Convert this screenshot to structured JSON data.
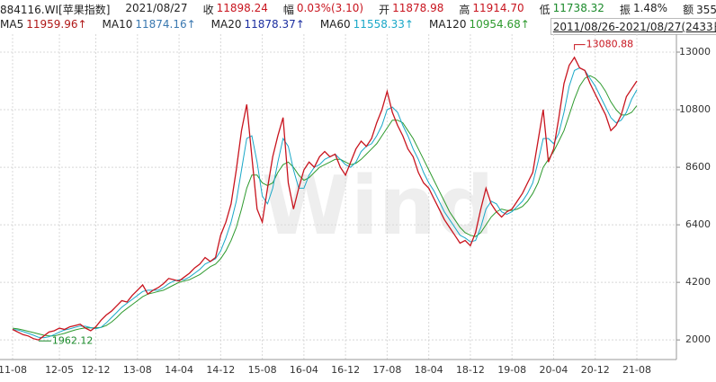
{
  "chart_data": {
    "type": "line",
    "title": "884116.WI[苹果指数]",
    "date": "2021/08/27",
    "quote": [
      {
        "label": "收",
        "value": "11898.24",
        "color": "#c8141e"
      },
      {
        "label": "幅",
        "value": "0.03%(3.10)",
        "color": "#c8141e"
      },
      {
        "label": "开",
        "value": "11878.98",
        "color": "#c8141e"
      },
      {
        "label": "高",
        "value": "11914.70",
        "color": "#c8141e"
      },
      {
        "label": "低",
        "value": "11738.32",
        "color": "#1a8a2a"
      },
      {
        "label": "振",
        "value": "1.48%",
        "color": "#222222"
      },
      {
        "label": "额",
        "value": "355.79亿",
        "color": "#222222"
      }
    ],
    "ma_legend": [
      {
        "name": "MA5",
        "label": "11959.96↑",
        "color": "#b01818"
      },
      {
        "name": "MA10",
        "label": "11874.16↑",
        "color": "#3a78b0"
      },
      {
        "name": "MA20",
        "label": "11878.37↑",
        "color": "#1c2fa0"
      }
    ],
    "range": "2011/08/26-2021/08/27(2433日)",
    "watermark": "Wind",
    "x": [
      "11-08",
      "11-09",
      "11-10",
      "11-11",
      "11-12",
      "12-01",
      "12-02",
      "12-03",
      "12-04",
      "12-05",
      "12-06",
      "12-07",
      "12-08",
      "12-09",
      "12-10",
      "12-11",
      "12-12",
      "13-01",
      "13-02",
      "13-03",
      "13-04",
      "13-05",
      "13-06",
      "13-07",
      "13-08",
      "13-09",
      "13-10",
      "13-11",
      "13-12",
      "14-01",
      "14-02",
      "14-03",
      "14-04",
      "14-05",
      "14-06",
      "14-07",
      "14-08",
      "14-09",
      "14-10",
      "14-11",
      "14-12",
      "15-01",
      "15-02",
      "15-03",
      "15-04",
      "15-05",
      "15-06",
      "15-07",
      "15-08",
      "15-09",
      "15-10",
      "15-11",
      "15-12",
      "16-01",
      "16-02",
      "16-03",
      "16-04",
      "16-05",
      "16-06",
      "16-07",
      "16-08",
      "16-09",
      "16-10",
      "16-11",
      "16-12",
      "17-01",
      "17-02",
      "17-03",
      "17-04",
      "17-05",
      "17-06",
      "17-07",
      "17-08",
      "17-09",
      "17-10",
      "17-11",
      "17-12",
      "18-01",
      "18-02",
      "18-03",
      "18-04",
      "18-05",
      "18-06",
      "18-07",
      "18-08",
      "18-09",
      "18-10",
      "18-11",
      "18-12",
      "19-01",
      "19-02",
      "19-03",
      "19-04",
      "19-05",
      "19-06",
      "19-07",
      "19-08",
      "19-09",
      "19-10",
      "19-11",
      "19-12",
      "20-01",
      "20-02",
      "20-03",
      "20-04",
      "20-05",
      "20-06",
      "20-07",
      "20-08",
      "20-09",
      "20-10",
      "20-11",
      "20-12",
      "21-01",
      "21-02",
      "21-03",
      "21-04",
      "21-05",
      "21-06",
      "21-07",
      "21-08"
    ],
    "xticks": [
      "11-08",
      "12-05",
      "12-12",
      "13-08",
      "14-04",
      "14-12",
      "15-08",
      "16-04",
      "16-12",
      "17-08",
      "18-04",
      "18-12",
      "19-08",
      "20-04",
      "20-12",
      "21-08"
    ],
    "series": [
      {
        "color": "#c8141e",
        "values": [
          2400,
          2300,
          2200,
          2150,
          2050,
          2000,
          2150,
          2300,
          2350,
          2450,
          2400,
          2500,
          2550,
          2600,
          2450,
          2350,
          2500,
          2750,
          2950,
          3100,
          3300,
          3500,
          3450,
          3700,
          3900,
          4100,
          3750,
          3900,
          4000,
          4150,
          4350,
          4300,
          4250,
          4400,
          4550,
          4750,
          4900,
          5150,
          5000,
          5150,
          6000,
          6500,
          7200,
          8500,
          10000,
          11000,
          9000,
          7000,
          6500,
          7800,
          9000,
          9800,
          10500,
          8000,
          7000,
          7800,
          8500,
          8800,
          8600,
          9000,
          9200,
          9000,
          9100,
          8600,
          8300,
          8800,
          9300,
          9600,
          9400,
          9700,
          10300,
          10800,
          11500,
          10700,
          10200,
          9800,
          9300,
          9000,
          8400,
          8000,
          7800,
          7400,
          7000,
          6600,
          6300,
          6000,
          5700,
          5800,
          5600,
          6100,
          7000,
          7800,
          7200,
          6900,
          6700,
          6900,
          7000,
          7300,
          7600,
          8000,
          8400,
          9600,
          10800,
          8800,
          9300,
          10500,
          11800,
          12500,
          12800,
          12400,
          12300,
          11800,
          11400,
          11000,
          10600,
          10000,
          10200,
          10600,
          11300,
          11600,
          11898.24
        ]
      },
      {
        "name": "MA60",
        "label": "11558.33↑",
        "color": "#1aa8c8",
        "values": [
          2400,
          2380,
          2320,
          2250,
          2180,
          2100,
          2080,
          2120,
          2200,
          2300,
          2380,
          2420,
          2480,
          2530,
          2520,
          2470,
          2430,
          2480,
          2650,
          2850,
          3050,
          3250,
          3400,
          3550,
          3700,
          3850,
          3900,
          3900,
          3900,
          4000,
          4150,
          4250,
          4300,
          4300,
          4400,
          4550,
          4700,
          4900,
          5000,
          5100,
          5400,
          5900,
          6500,
          7300,
          8500,
          9700,
          9800,
          8800,
          7500,
          7200,
          7800,
          8800,
          9700,
          9400,
          8500,
          7800,
          7800,
          8300,
          8600,
          8700,
          8900,
          9000,
          9100,
          8900,
          8700,
          8600,
          8800,
          9200,
          9400,
          9500,
          9800,
          10200,
          10800,
          10900,
          10700,
          10200,
          9800,
          9300,
          8900,
          8400,
          8000,
          7700,
          7300,
          6900,
          6600,
          6300,
          6000,
          5900,
          5750,
          5800,
          6300,
          7000,
          7300,
          7200,
          6900,
          6800,
          6900,
          7100,
          7300,
          7600,
          8000,
          8800,
          9700,
          9700,
          9500,
          9900,
          10700,
          11700,
          12300,
          12400,
          12300,
          12000,
          11700,
          11300,
          10900,
          10500,
          10300,
          10400,
          10700,
          11200,
          11558.33
        ]
      },
      {
        "name": "MA120",
        "label": "10954.68↑",
        "color": "#2e9a2e",
        "values": [
          2450,
          2420,
          2380,
          2330,
          2280,
          2230,
          2180,
          2150,
          2150,
          2200,
          2250,
          2320,
          2380,
          2430,
          2460,
          2460,
          2460,
          2480,
          2550,
          2680,
          2850,
          3050,
          3200,
          3350,
          3500,
          3650,
          3750,
          3800,
          3850,
          3900,
          4000,
          4100,
          4200,
          4250,
          4300,
          4400,
          4500,
          4650,
          4800,
          4900,
          5100,
          5400,
          5800,
          6300,
          7000,
          7800,
          8300,
          8300,
          8000,
          7900,
          8000,
          8400,
          8700,
          8800,
          8600,
          8300,
          8100,
          8200,
          8400,
          8600,
          8700,
          8800,
          8900,
          8900,
          8800,
          8700,
          8750,
          8900,
          9100,
          9300,
          9500,
          9800,
          10100,
          10400,
          10400,
          10300,
          10000,
          9700,
          9300,
          8900,
          8500,
          8100,
          7700,
          7300,
          6900,
          6600,
          6300,
          6100,
          6000,
          5950,
          6100,
          6400,
          6700,
          6900,
          7000,
          6950,
          6950,
          7000,
          7100,
          7300,
          7600,
          8000,
          8600,
          8900,
          9200,
          9600,
          10000,
          10600,
          11200,
          11700,
          12000,
          12100,
          12000,
          11800,
          11500,
          11100,
          10800,
          10600,
          10600,
          10700,
          10954.68
        ]
      }
    ],
    "ylim": [
      1250,
      13550
    ],
    "yticks": [
      2000,
      4200,
      6400,
      8600,
      10800,
      13000
    ],
    "grid": true,
    "annotations": [
      {
        "x": "20-08",
        "value": 13080.88,
        "color": "#c8141e",
        "side": "top"
      },
      {
        "x": "12-01",
        "value": 1962.12,
        "color": "#1a8a2a",
        "side": "right"
      }
    ]
  }
}
